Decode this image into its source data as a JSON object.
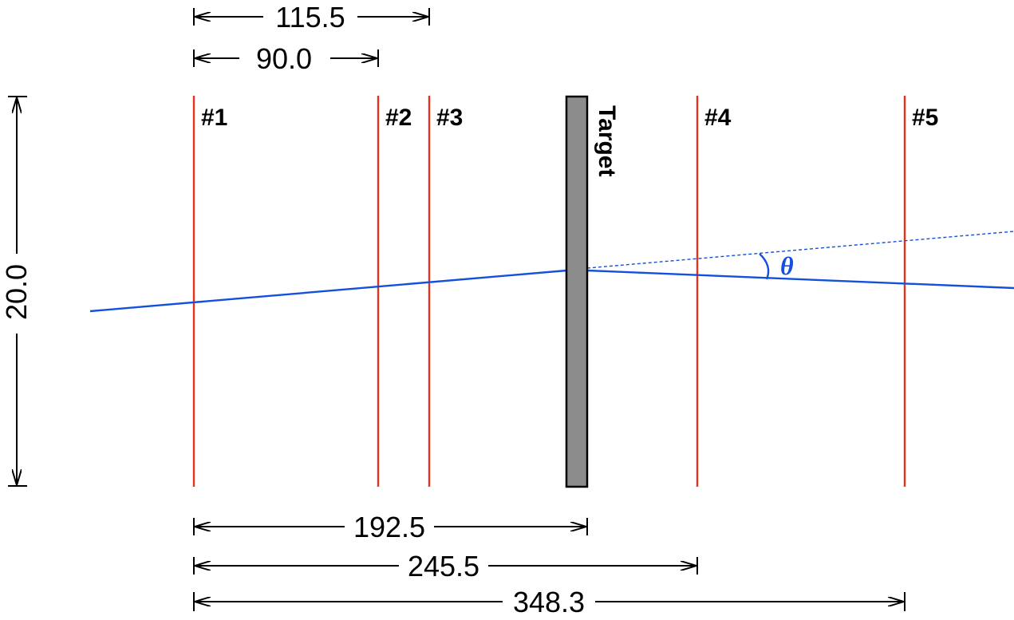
{
  "colors": {
    "detector": "#e8311a",
    "beam": "#1450dc",
    "target_fill": "#8c8c8c",
    "target_stroke": "#000000"
  },
  "detectors": [
    {
      "label": "#1"
    },
    {
      "label": "#2"
    },
    {
      "label": "#3"
    },
    {
      "label": "#4"
    },
    {
      "label": "#5"
    }
  ],
  "target": {
    "label": "Target"
  },
  "angle": {
    "label": "θ"
  },
  "dimensions": {
    "top_1": "115.5",
    "top_2": "90.0",
    "height": "20.0",
    "bottom_1": "192.5",
    "bottom_2": "245.5",
    "bottom_3": "348.3"
  }
}
